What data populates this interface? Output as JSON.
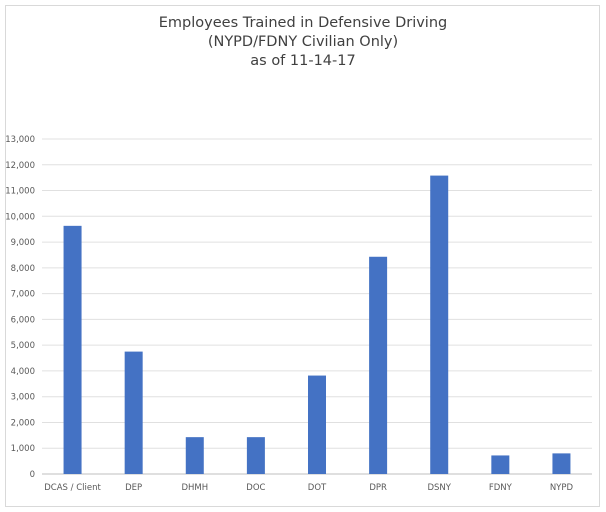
{
  "chart_data": {
    "type": "bar",
    "title_lines": [
      "Employees Trained in Defensive Driving",
      "(NYPD/FDNY Civilian Only)",
      "as of 11-14-17"
    ],
    "categories": [
      "DCAS / Client",
      "DEP",
      "DHMH",
      "DOC",
      "DOT",
      "DPR",
      "DSNY",
      "FDNY",
      "NYPD"
    ],
    "values": [
      9630,
      4750,
      1430,
      1430,
      3820,
      8430,
      11580,
      720,
      800
    ],
    "ylim": [
      0,
      13000
    ],
    "ytick_labels": [
      "0",
      "1,000",
      "2,000",
      "3,000",
      "4,000",
      "5,000",
      "6,000",
      "7,000",
      "8,000",
      "9,000",
      "10,000",
      "11,000",
      "12,000",
      "13,000"
    ],
    "grid": true,
    "legend": "none",
    "bar_color": "#4472c4"
  }
}
